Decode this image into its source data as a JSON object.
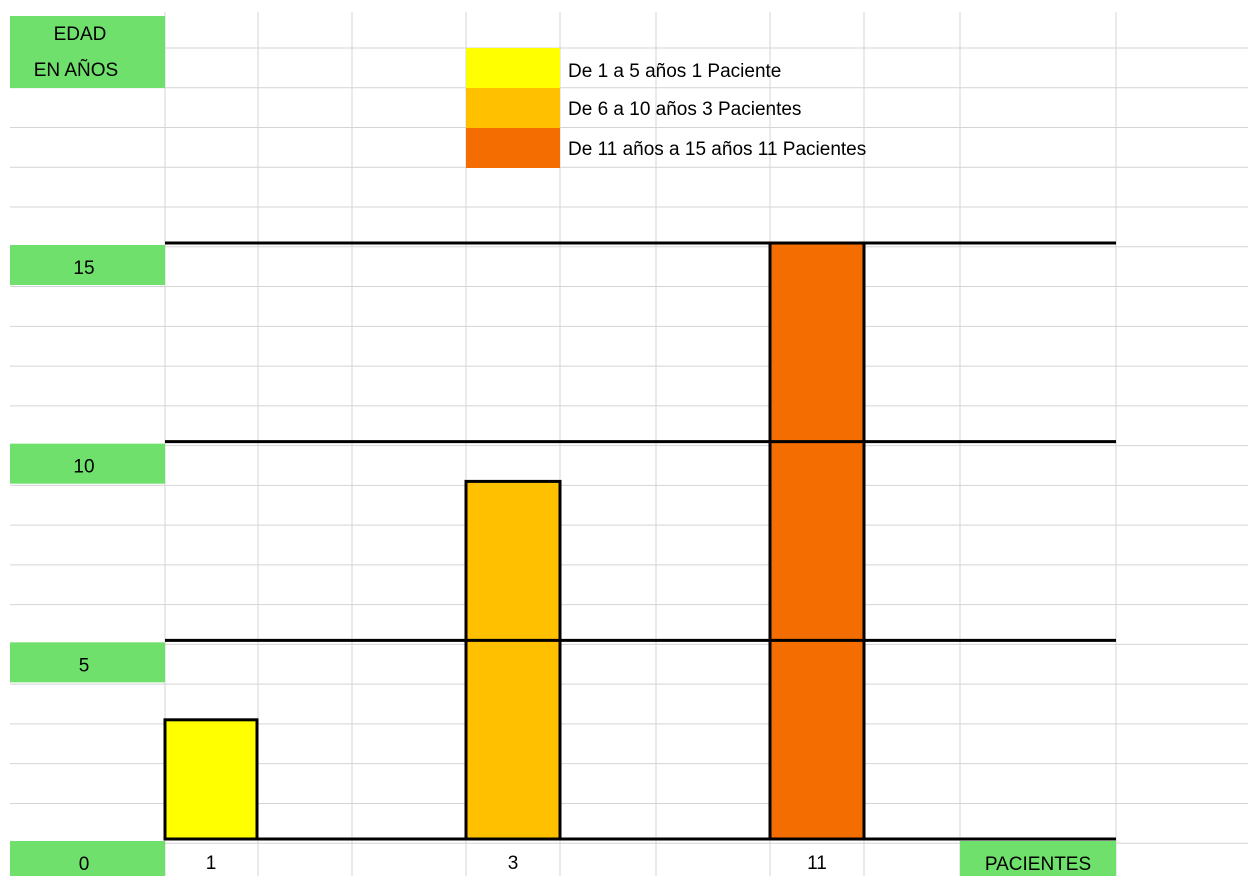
{
  "chart_data": {
    "type": "bar",
    "title": "",
    "ylabel": "EDAD EN AÑOS",
    "ylabel_lines": [
      "EDAD",
      "EN AÑOS"
    ],
    "xlabel": "PACIENTES",
    "ylim": [
      0,
      15
    ],
    "y_ticks": [
      "15",
      "10",
      "5",
      "0"
    ],
    "y_tick_values": [
      15,
      10,
      5,
      0
    ],
    "categories": [
      "1",
      "3",
      "11"
    ],
    "values": [
      3,
      9,
      15
    ],
    "colors": [
      "#ffff00",
      "#ffc000",
      "#f46d00"
    ],
    "grid": true,
    "legend_position": "top-center",
    "legend": [
      {
        "label": "De 1 a 5 años 1 Paciente",
        "color": "#ffff00"
      },
      {
        "label": "De 6 a 10 años 3 Pacientes",
        "color": "#ffc000"
      },
      {
        "label": "De 11 años a 15 años  11 Pacientes",
        "color": "#f46d00"
      }
    ],
    "label_cell_color": "#6fe06b"
  }
}
